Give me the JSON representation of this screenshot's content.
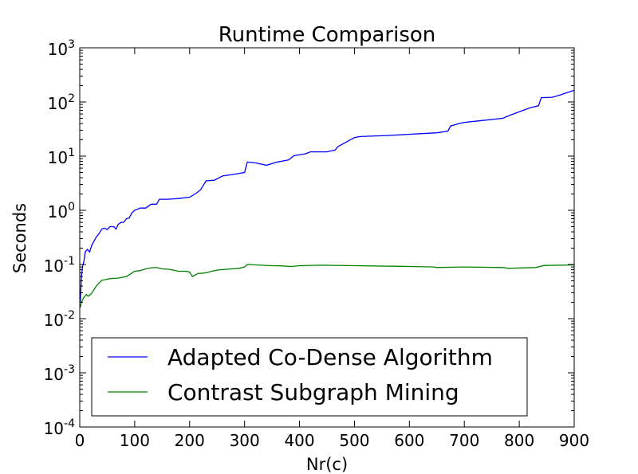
{
  "chart_data": {
    "type": "line",
    "title": "Runtime Comparison",
    "xlabel": "Nr(c)",
    "ylabel": "Seconds",
    "xlim": [
      0,
      900
    ],
    "ylim": [
      0.0001,
      1000
    ],
    "yscale": "log",
    "grid": false,
    "legend_placement": "lower-left",
    "x_ticks": [
      0,
      100,
      200,
      300,
      400,
      500,
      600,
      700,
      800,
      900
    ],
    "y_ticks": [
      {
        "base": "10",
        "exp": "3",
        "value": 1000
      },
      {
        "base": "10",
        "exp": "2",
        "value": 100
      },
      {
        "base": "10",
        "exp": "1",
        "value": 10
      },
      {
        "base": "10",
        "exp": "0",
        "value": 1
      },
      {
        "base": "10",
        "exp": "-1",
        "value": 0.1
      },
      {
        "base": "10",
        "exp": "-2",
        "value": 0.01
      },
      {
        "base": "10",
        "exp": "-3",
        "value": 0.001
      },
      {
        "base": "10",
        "exp": "-4",
        "value": 0.0001
      }
    ],
    "series": [
      {
        "name": "Adapted Co-Dense Algorithm",
        "color": "#0000ff",
        "points": [
          [
            1,
            0.02
          ],
          [
            3,
            0.06
          ],
          [
            5,
            0.09
          ],
          [
            8,
            0.12
          ],
          [
            10,
            0.17
          ],
          [
            14,
            0.19
          ],
          [
            18,
            0.17
          ],
          [
            22,
            0.23
          ],
          [
            26,
            0.27
          ],
          [
            30,
            0.32
          ],
          [
            35,
            0.37
          ],
          [
            40,
            0.45
          ],
          [
            45,
            0.47
          ],
          [
            50,
            0.44
          ],
          [
            55,
            0.5
          ],
          [
            62,
            0.5
          ],
          [
            66,
            0.45
          ],
          [
            70,
            0.55
          ],
          [
            75,
            0.6
          ],
          [
            80,
            0.6
          ],
          [
            85,
            0.7
          ],
          [
            90,
            0.72
          ],
          [
            95,
            0.9
          ],
          [
            100,
            1.0
          ],
          [
            110,
            1.1
          ],
          [
            120,
            1.1
          ],
          [
            130,
            1.3
          ],
          [
            140,
            1.3
          ],
          [
            145,
            1.6
          ],
          [
            160,
            1.6
          ],
          [
            180,
            1.65
          ],
          [
            200,
            1.75
          ],
          [
            210,
            2.0
          ],
          [
            220,
            2.4
          ],
          [
            230,
            3.5
          ],
          [
            245,
            3.6
          ],
          [
            260,
            4.3
          ],
          [
            280,
            4.6
          ],
          [
            300,
            5.0
          ],
          [
            305,
            7.8
          ],
          [
            320,
            7.5
          ],
          [
            340,
            6.8
          ],
          [
            360,
            7.8
          ],
          [
            380,
            8.5
          ],
          [
            390,
            10.2
          ],
          [
            410,
            11
          ],
          [
            420,
            12
          ],
          [
            450,
            12
          ],
          [
            465,
            13
          ],
          [
            470,
            15
          ],
          [
            500,
            22
          ],
          [
            510,
            23
          ],
          [
            560,
            24
          ],
          [
            620,
            26
          ],
          [
            650,
            27
          ],
          [
            670,
            29
          ],
          [
            675,
            36
          ],
          [
            690,
            40
          ],
          [
            700,
            42
          ],
          [
            720,
            44
          ],
          [
            770,
            50
          ],
          [
            785,
            58
          ],
          [
            820,
            78
          ],
          [
            835,
            85
          ],
          [
            840,
            120
          ],
          [
            860,
            122
          ],
          [
            875,
            135
          ],
          [
            900,
            165
          ]
        ]
      },
      {
        "name": "Contrast Subgraph Mining",
        "color": "#008000",
        "points": [
          [
            1,
            0.016
          ],
          [
            3,
            0.02
          ],
          [
            5,
            0.022
          ],
          [
            8,
            0.025
          ],
          [
            12,
            0.028
          ],
          [
            15,
            0.026
          ],
          [
            20,
            0.028
          ],
          [
            25,
            0.033
          ],
          [
            30,
            0.04
          ],
          [
            35,
            0.045
          ],
          [
            40,
            0.051
          ],
          [
            45,
            0.052
          ],
          [
            55,
            0.055
          ],
          [
            70,
            0.056
          ],
          [
            85,
            0.06
          ],
          [
            100,
            0.075
          ],
          [
            110,
            0.077
          ],
          [
            120,
            0.083
          ],
          [
            130,
            0.087
          ],
          [
            140,
            0.088
          ],
          [
            150,
            0.083
          ],
          [
            160,
            0.082
          ],
          [
            170,
            0.079
          ],
          [
            180,
            0.075
          ],
          [
            195,
            0.075
          ],
          [
            200,
            0.072
          ],
          [
            205,
            0.06
          ],
          [
            215,
            0.068
          ],
          [
            230,
            0.07
          ],
          [
            240,
            0.075
          ],
          [
            250,
            0.079
          ],
          [
            270,
            0.082
          ],
          [
            290,
            0.085
          ],
          [
            300,
            0.09
          ],
          [
            305,
            0.1
          ],
          [
            330,
            0.097
          ],
          [
            350,
            0.095
          ],
          [
            370,
            0.094
          ],
          [
            385,
            0.092
          ],
          [
            400,
            0.095
          ],
          [
            440,
            0.097
          ],
          [
            500,
            0.095
          ],
          [
            600,
            0.092
          ],
          [
            645,
            0.09
          ],
          [
            650,
            0.088
          ],
          [
            700,
            0.09
          ],
          [
            770,
            0.088
          ],
          [
            780,
            0.085
          ],
          [
            830,
            0.088
          ],
          [
            845,
            0.096
          ],
          [
            900,
            0.098
          ]
        ]
      }
    ]
  }
}
